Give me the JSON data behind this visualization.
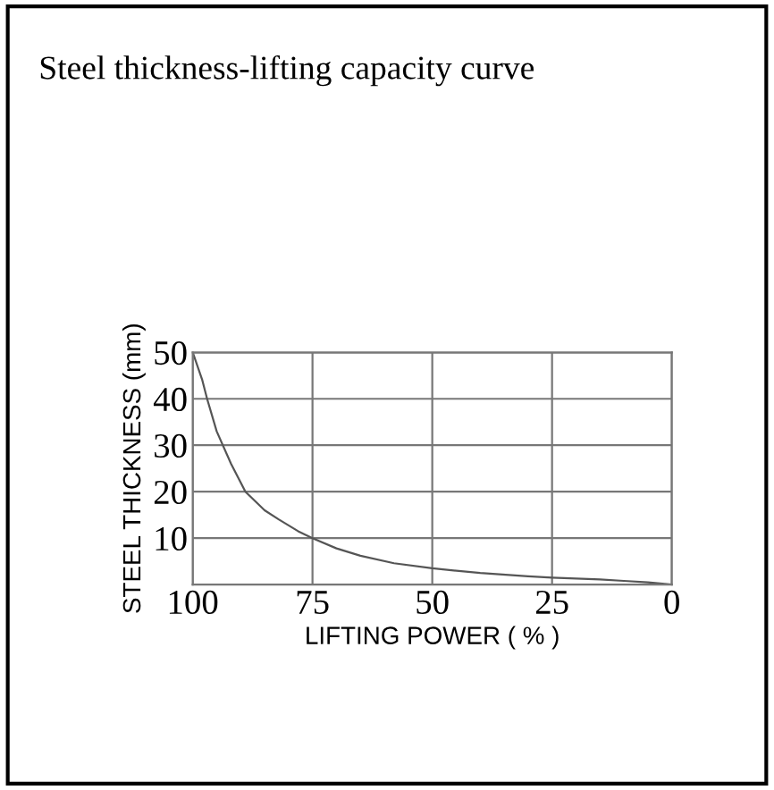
{
  "chart_data": {
    "type": "line",
    "title": "Steel thickness-lifting capacity curve",
    "xlabel": "LIFTING POWER ( % )",
    "ylabel": "STEEL THICKNESS (mm)",
    "x": [
      100,
      98,
      97,
      95,
      92,
      89,
      85,
      82,
      78,
      75,
      70,
      65,
      58,
      50,
      40,
      30,
      25,
      15,
      10,
      5,
      0
    ],
    "series": [
      {
        "color": "#555555",
        "values": [
          50,
          44,
          40,
          33,
          26,
          20,
          16,
          14,
          11.5,
          10,
          7.8,
          6.2,
          4.6,
          3.5,
          2.5,
          1.8,
          1.5,
          1.1,
          0.8,
          0.5,
          0
        ]
      }
    ],
    "xlim": [
      100,
      0
    ],
    "xticks": [
      100,
      75,
      50,
      25,
      0
    ],
    "ylim": [
      0,
      50
    ],
    "yticks": [
      10,
      20,
      30,
      40,
      50
    ],
    "grid": true,
    "legend": false,
    "marker": "none",
    "line_style": "solid"
  }
}
